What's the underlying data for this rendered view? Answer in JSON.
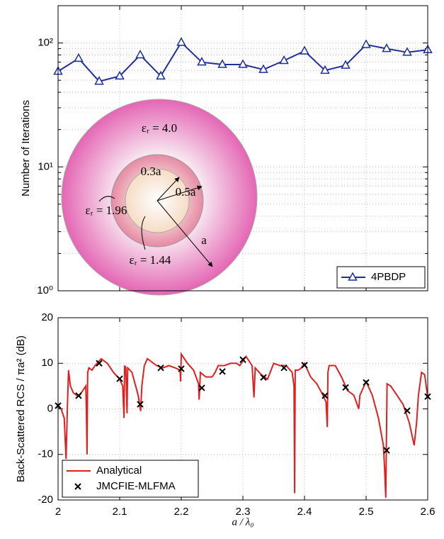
{
  "chart_data": [
    {
      "type": "line",
      "ylabel": "Number of Iterations",
      "yscale": "log",
      "grid": true,
      "minor_grid": true,
      "legend": "lower right",
      "x": [
        2.0,
        2.0333,
        2.0667,
        2.1,
        2.1333,
        2.1667,
        2.2,
        2.2333,
        2.2667,
        2.3,
        2.3333,
        2.3667,
        2.4,
        2.4333,
        2.4667,
        2.5,
        2.5333,
        2.5667,
        2.6
      ],
      "series": [
        {
          "name": "4PBDP",
          "color": "#1f2f9a",
          "marker": "triangle",
          "values": [
            59,
            75,
            49,
            54,
            80,
            54,
            101,
            70,
            67,
            67,
            61,
            72,
            86,
            60,
            66,
            97,
            90,
            84,
            88
          ]
        }
      ],
      "xlim": [
        2,
        2.6
      ],
      "xticks": [
        2,
        2.1,
        2.2,
        2.3,
        2.4,
        2.5,
        2.6
      ],
      "ylim": [
        1,
        200
      ],
      "yticks": [
        {
          "value": 1,
          "label": "10⁰"
        },
        {
          "value": 10,
          "label": "10¹"
        },
        {
          "value": 100,
          "label": "10²"
        }
      ],
      "annotations": [
        "εᵣ = 4.0",
        "0.3a",
        "0.5a",
        "a",
        "εᵣ = 1.96",
        "εᵣ = 1.44"
      ]
    },
    {
      "type": "line",
      "xlabel": "a / λ₀",
      "ylabel": "Back-Scattered RCS / πa² (dB)",
      "grid": true,
      "legend": "lower left",
      "series": [
        {
          "name": "Analytical",
          "color": "#e02020",
          "marker": "none",
          "x": [
            2.0,
            2.005,
            2.01,
            2.013,
            2.015,
            2.017,
            2.02,
            2.025,
            2.03,
            2.035,
            2.04,
            2.045,
            2.046,
            2.047,
            2.048,
            2.05,
            2.055,
            2.06,
            2.07,
            2.08,
            2.09,
            2.1,
            2.105,
            2.107,
            2.108,
            2.11,
            2.112,
            2.113,
            2.12,
            2.13,
            2.134,
            2.136,
            2.14,
            2.145,
            2.15,
            2.16,
            2.17,
            2.18,
            2.19,
            2.198,
            2.199,
            2.2,
            2.205,
            2.21,
            2.22,
            2.228,
            2.229,
            2.231,
            2.24,
            2.25,
            2.255,
            2.26,
            2.27,
            2.28,
            2.29,
            2.295,
            2.3,
            2.305,
            2.31,
            2.315,
            2.318,
            2.32,
            2.33,
            2.34,
            2.35,
            2.36,
            2.37,
            2.38,
            2.383,
            2.384,
            2.385,
            2.39,
            2.395,
            2.4,
            2.405,
            2.41,
            2.42,
            2.43,
            2.435,
            2.437,
            2.438,
            2.44,
            2.45,
            2.46,
            2.47,
            2.48,
            2.488,
            2.49,
            2.5,
            2.51,
            2.52,
            2.528,
            2.53,
            2.532,
            2.534,
            2.54,
            2.55,
            2.56,
            2.57,
            2.578,
            2.582,
            2.585,
            2.59,
            2.595,
            2.6
          ],
          "values": [
            0.5,
            0,
            -2,
            -11,
            0,
            8.5,
            5,
            3.5,
            3,
            3,
            4,
            5,
            0,
            -10,
            8,
            9,
            8.5,
            9.5,
            11,
            10,
            8,
            6.5,
            5,
            -2,
            9.5,
            9,
            -1,
            9,
            8,
            3,
            -0.5,
            5,
            9.5,
            11,
            10.5,
            9.5,
            9,
            9.5,
            9,
            8.5,
            6,
            12,
            11,
            10,
            8.5,
            5.5,
            2,
            8,
            7,
            7,
            8,
            9.5,
            9.5,
            10,
            10,
            9.5,
            10.5,
            11.5,
            10.5,
            9.5,
            2.5,
            9,
            7.5,
            6.5,
            10,
            9.5,
            9.5,
            8,
            5,
            -18.5,
            8.5,
            8.5,
            9,
            10,
            8.5,
            7,
            5.5,
            3,
            1.5,
            -4,
            8,
            9.5,
            9.5,
            7,
            4,
            3,
            0,
            3,
            6,
            3,
            -2,
            -8,
            -13,
            -19.5,
            5.5,
            5,
            3,
            1,
            -3,
            -8,
            -3,
            3,
            8,
            7.5,
            2.5
          ]
        },
        {
          "name": "JMCFIE-MLFMA",
          "color": "#000000",
          "marker": "x",
          "x": [
            2.0,
            2.0333,
            2.0667,
            2.1,
            2.1333,
            2.1667,
            2.2,
            2.2333,
            2.2667,
            2.3,
            2.3333,
            2.3667,
            2.4,
            2.4333,
            2.4667,
            2.5,
            2.5333,
            2.5667,
            2.6
          ],
          "values": [
            0.7,
            2.9,
            10.0,
            6.6,
            1.0,
            9.0,
            8.8,
            4.6,
            8.2,
            10.8,
            6.9,
            9.0,
            9.6,
            2.9,
            4.7,
            5.8,
            -9.1,
            -0.4,
            2.7
          ]
        }
      ],
      "xlim": [
        2,
        2.6
      ],
      "xticks": [
        2,
        2.1,
        2.2,
        2.3,
        2.4,
        2.5,
        2.6
      ],
      "ylim": [
        -20,
        20
      ],
      "yticks": [
        -20,
        -10,
        0,
        10,
        20
      ]
    }
  ]
}
